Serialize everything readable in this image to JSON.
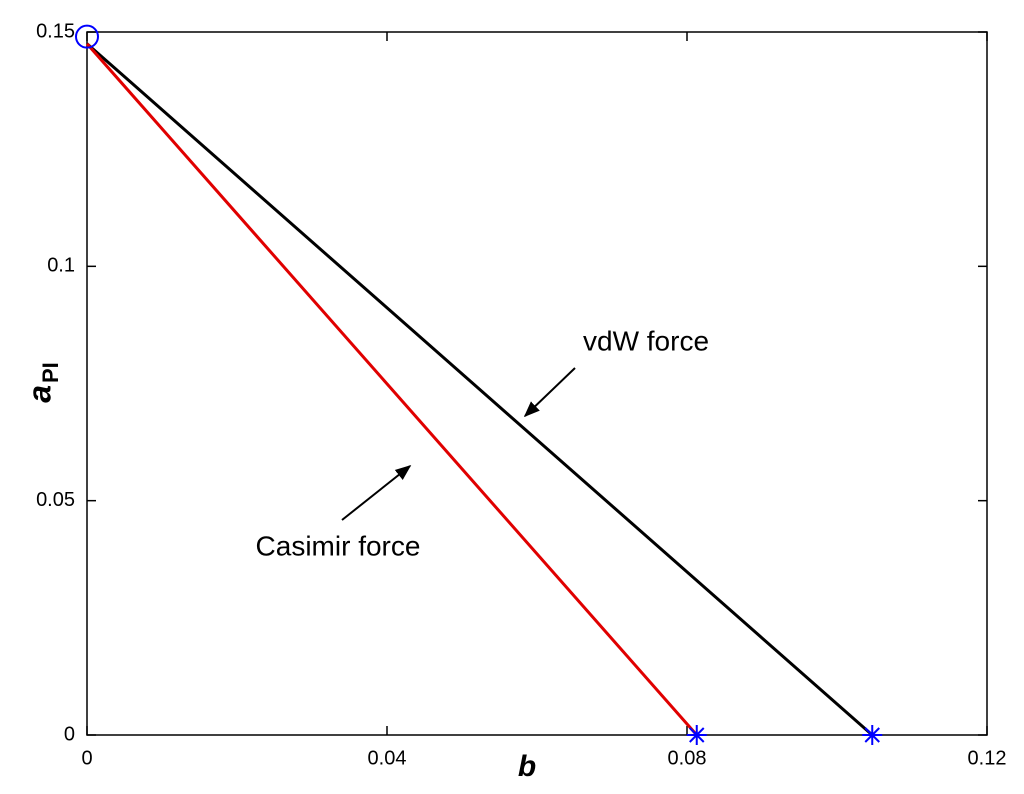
{
  "chart_data": {
    "type": "line",
    "xlabel": "b",
    "ylabel": "a",
    "ylabel_sub": "PI",
    "xlim": [
      0,
      0.12
    ],
    "ylim": [
      0,
      0.15
    ],
    "xticks": [
      0,
      0.04,
      0.08,
      0.12
    ],
    "yticks": [
      0,
      0.05,
      0.1,
      0.15
    ],
    "series": [
      {
        "color": "#000000",
        "x": [
          0,
          0.1047
        ],
        "values": [
          0.1475,
          0
        ]
      },
      {
        "color": "#e00000",
        "x": [
          0,
          0.0813
        ],
        "values": [
          0.1475,
          0
        ]
      }
    ],
    "markers": [
      {
        "shape": "circle",
        "color": "#0000ff",
        "x": [
          0
        ],
        "values": [
          0.149
        ]
      },
      {
        "shape": "star",
        "color": "#0000ff",
        "x": [
          0.0813,
          0.1047
        ],
        "values": [
          0,
          0
        ]
      }
    ],
    "annotations": [
      {
        "text": "vdW force"
      },
      {
        "text": "Casimir force"
      }
    ]
  }
}
